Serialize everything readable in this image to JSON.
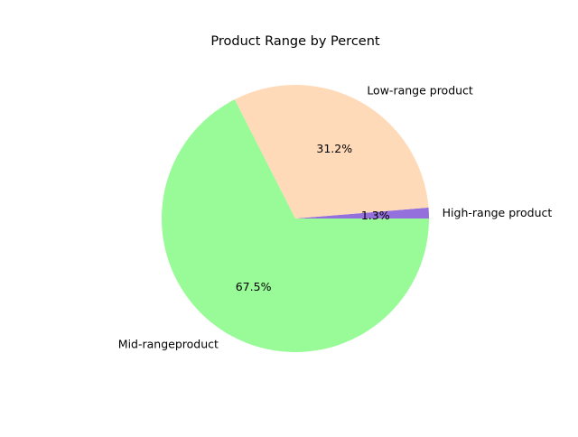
{
  "chart_data": {
    "type": "pie",
    "title": "Product Range by Percent",
    "slices": [
      {
        "label": "High-range product",
        "value": 1.3,
        "pct_label": "1.3%",
        "color": "#9370db"
      },
      {
        "label": "Low-range product",
        "value": 31.2,
        "pct_label": "31.2%",
        "color": "#ffdab9"
      },
      {
        "label": "Mid-rangeproduct",
        "value": 67.5,
        "pct_label": "67.5%",
        "color": "#98fb98"
      }
    ],
    "start_angle_deg": 0,
    "direction": "counterclockwise",
    "legend": "none"
  }
}
